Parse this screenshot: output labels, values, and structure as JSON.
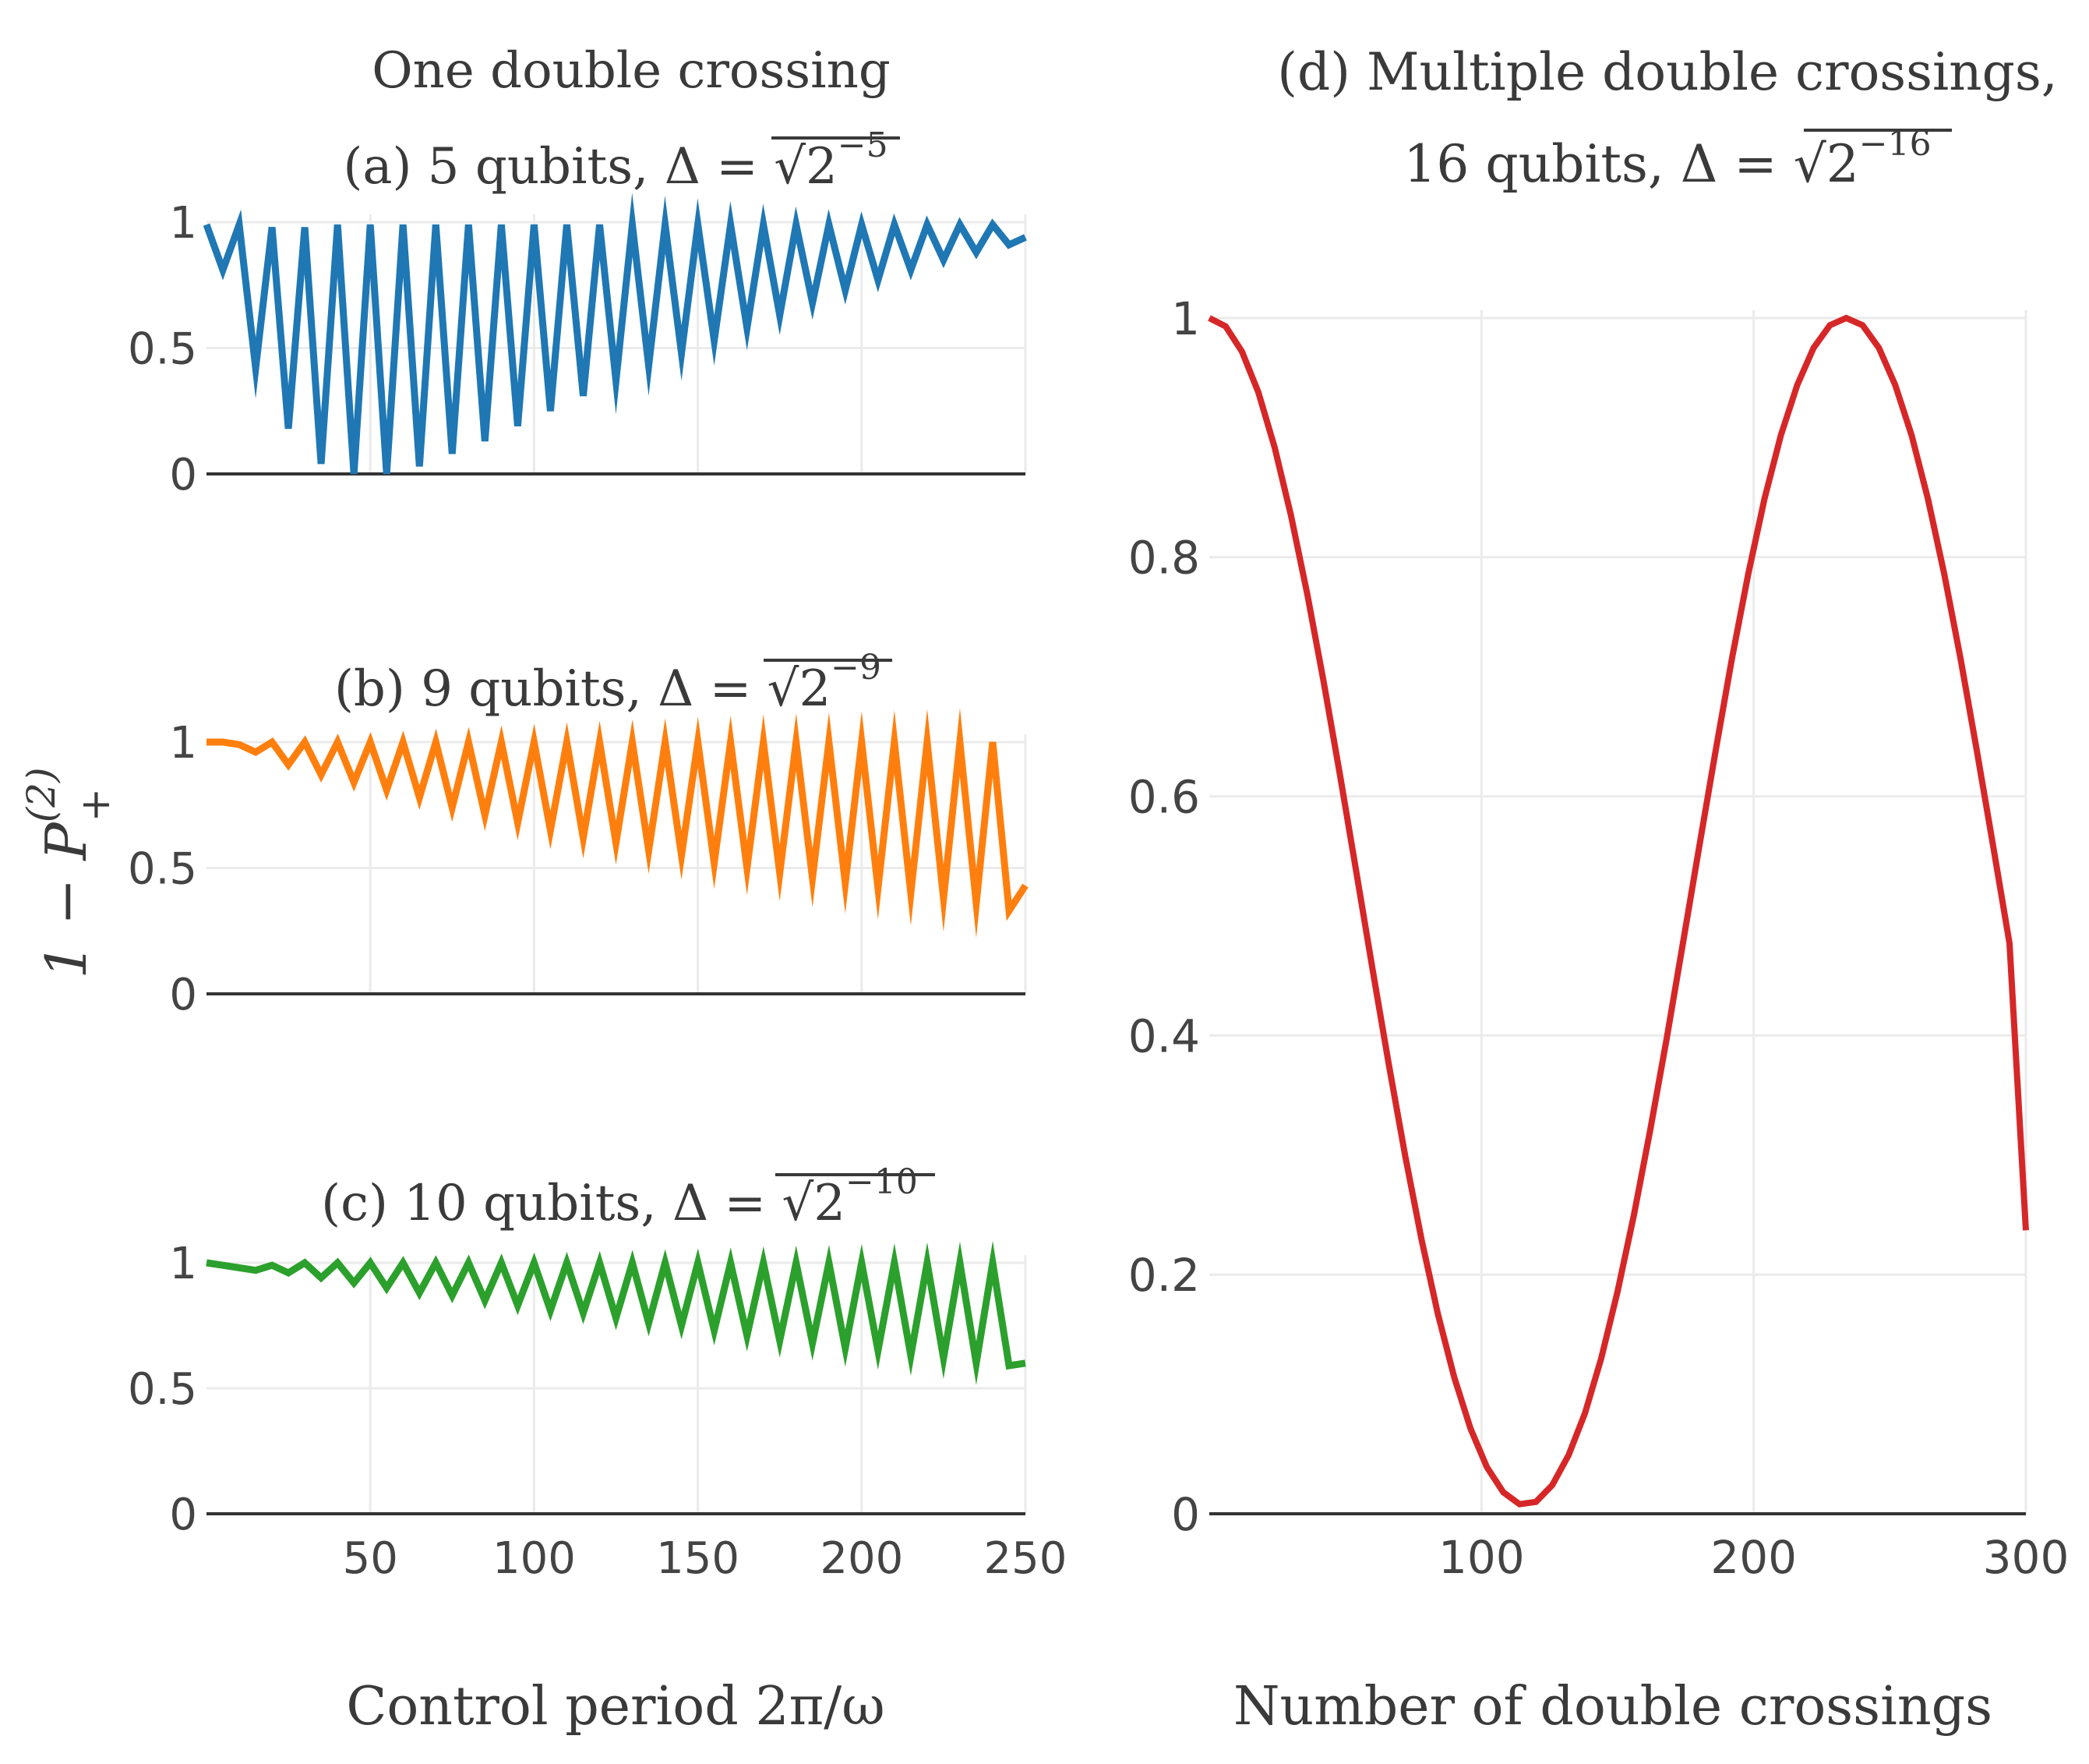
{
  "figure": {
    "group_title": "One double crossing",
    "ylabel_left": "1 − P",
    "ylabel_left_sup": "(2)",
    "ylabel_left_sub": "+"
  },
  "chart_data": [
    {
      "id": "a",
      "type": "line",
      "title": "(a) 5 qubits, Δ = √2",
      "title_exp": "−5",
      "xlabel": "",
      "ylabel": "",
      "xlim": [
        0,
        250
      ],
      "ylim": [
        0,
        1
      ],
      "x_ticks": [
        50,
        100,
        150,
        200,
        250
      ],
      "y_ticks": [
        0,
        0.5,
        1
      ],
      "y_tick_labels": [
        "0",
        "0.5",
        "1"
      ],
      "x_tick_labels": [
        "",
        "",
        "",
        "",
        ""
      ],
      "color": "#1f77b4",
      "series": [
        {
          "name": "5 qubits",
          "x": [
            0,
            5,
            10,
            15,
            20,
            25,
            30,
            35,
            40,
            45,
            50,
            55,
            60,
            65,
            70,
            75,
            80,
            85,
            90,
            95,
            100,
            105,
            110,
            115,
            120,
            125,
            130,
            135,
            140,
            145,
            150,
            155,
            160,
            165,
            170,
            175,
            180,
            185,
            190,
            195,
            200,
            205,
            210,
            215,
            220,
            225,
            230,
            235,
            240,
            245,
            250
          ],
          "values": [
            0.99,
            0.81,
            0.99,
            0.42,
            0.98,
            0.18,
            0.98,
            0.04,
            0.99,
            0.0,
            0.99,
            0.0,
            0.99,
            0.03,
            0.99,
            0.08,
            0.99,
            0.13,
            0.99,
            0.19,
            0.99,
            0.25,
            0.99,
            0.31,
            0.99,
            0.37,
            0.99,
            0.43,
            0.99,
            0.48,
            0.99,
            0.53,
            0.99,
            0.58,
            0.99,
            0.63,
            0.99,
            0.68,
            0.99,
            0.73,
            0.99,
            0.77,
            0.99,
            0.81,
            0.99,
            0.85,
            0.99,
            0.88,
            0.99,
            0.91,
            0.94
          ]
        }
      ]
    },
    {
      "id": "b",
      "type": "line",
      "title": "(b) 9 qubits, Δ = √2",
      "title_exp": "−9",
      "xlabel": "",
      "ylabel": "",
      "xlim": [
        0,
        250
      ],
      "ylim": [
        0,
        1
      ],
      "x_ticks": [
        50,
        100,
        150,
        200,
        250
      ],
      "y_ticks": [
        0,
        0.5,
        1
      ],
      "y_tick_labels": [
        "0",
        "0.5",
        "1"
      ],
      "x_tick_labels": [
        "",
        "",
        "",
        "",
        ""
      ],
      "color": "#ff7f0e",
      "series": [
        {
          "name": "9 qubits",
          "x": [
            0,
            5,
            10,
            15,
            20,
            25,
            30,
            35,
            40,
            45,
            50,
            55,
            60,
            65,
            70,
            75,
            80,
            85,
            90,
            95,
            100,
            105,
            110,
            115,
            120,
            125,
            130,
            135,
            140,
            145,
            150,
            155,
            160,
            165,
            170,
            175,
            180,
            185,
            190,
            195,
            200,
            205,
            210,
            215,
            220,
            225,
            230,
            235,
            240,
            245,
            250
          ],
          "values": [
            1.0,
            1.0,
            0.99,
            0.96,
            1.0,
            0.91,
            1.0,
            0.87,
            1.0,
            0.84,
            1.0,
            0.81,
            1.0,
            0.78,
            1.0,
            0.74,
            1.0,
            0.71,
            1.0,
            0.68,
            1.0,
            0.65,
            1.0,
            0.62,
            1.0,
            0.6,
            1.0,
            0.57,
            1.0,
            0.55,
            1.0,
            0.52,
            1.0,
            0.5,
            1.0,
            0.48,
            1.0,
            0.46,
            1.0,
            0.44,
            1.0,
            0.42,
            1.0,
            0.4,
            1.0,
            0.38,
            1.0,
            0.36,
            1.0,
            0.33,
            0.43
          ]
        }
      ]
    },
    {
      "id": "c",
      "type": "line",
      "title": "(c) 10 qubits, Δ = √2",
      "title_exp": "−10",
      "xlabel": "Control period 2π/ω",
      "ylabel": "",
      "xlim": [
        0,
        250
      ],
      "ylim": [
        0,
        1
      ],
      "x_ticks": [
        50,
        100,
        150,
        200,
        250
      ],
      "y_ticks": [
        0,
        0.5,
        1
      ],
      "y_tick_labels": [
        "0",
        "0.5",
        "1"
      ],
      "x_tick_labels": [
        "50",
        "100",
        "150",
        "200",
        "250"
      ],
      "color": "#2ca02c",
      "series": [
        {
          "name": "10 qubits",
          "x": [
            0,
            5,
            10,
            15,
            20,
            25,
            30,
            35,
            40,
            45,
            50,
            55,
            60,
            65,
            70,
            75,
            80,
            85,
            90,
            95,
            100,
            105,
            110,
            115,
            120,
            125,
            130,
            135,
            140,
            145,
            150,
            155,
            160,
            165,
            170,
            175,
            180,
            185,
            190,
            195,
            200,
            205,
            210,
            215,
            220,
            225,
            230,
            235,
            240,
            245,
            250
          ],
          "values": [
            1.0,
            0.99,
            0.98,
            0.97,
            0.99,
            0.96,
            1.0,
            0.94,
            1.0,
            0.92,
            1.0,
            0.9,
            1.0,
            0.88,
            1.0,
            0.87,
            1.0,
            0.85,
            1.0,
            0.83,
            1.0,
            0.81,
            1.0,
            0.8,
            1.0,
            0.78,
            1.0,
            0.76,
            1.0,
            0.75,
            1.0,
            0.73,
            1.0,
            0.71,
            1.0,
            0.69,
            1.0,
            0.68,
            1.0,
            0.66,
            1.0,
            0.65,
            1.0,
            0.63,
            1.0,
            0.62,
            1.0,
            0.6,
            1.0,
            0.59,
            0.6
          ]
        }
      ]
    },
    {
      "id": "d",
      "type": "line",
      "title": "(d) Multiple double crossings,",
      "title_line2": "16 qubits, Δ = √2",
      "title_exp": "−16",
      "xlabel": "Number of double crossings",
      "ylabel": "",
      "xlim": [
        0,
        300
      ],
      "ylim": [
        0,
        1
      ],
      "x_ticks": [
        100,
        200,
        300
      ],
      "y_ticks": [
        0,
        0.2,
        0.4,
        0.6,
        0.8,
        1
      ],
      "y_tick_labels": [
        "0",
        "0.2",
        "0.4",
        "0.6",
        "0.8",
        "1"
      ],
      "x_tick_labels": [
        "100",
        "200",
        "300"
      ],
      "color": "#d62728",
      "series": [
        {
          "name": "16 qubits",
          "x": [
            0,
            6,
            12,
            18,
            24,
            30,
            36,
            42,
            48,
            54,
            60,
            66,
            72,
            78,
            84,
            90,
            96,
            102,
            108,
            114,
            120,
            126,
            132,
            138,
            144,
            150,
            156,
            162,
            168,
            174,
            180,
            186,
            192,
            198,
            204,
            210,
            216,
            222,
            228,
            234,
            240,
            246,
            252,
            258,
            264,
            270,
            276,
            282,
            288,
            294,
            300
          ],
          "values": [
            1.0,
            0.993,
            0.972,
            0.938,
            0.892,
            0.835,
            0.769,
            0.696,
            0.618,
            0.537,
            0.455,
            0.375,
            0.299,
            0.229,
            0.167,
            0.114,
            0.071,
            0.039,
            0.018,
            0.008,
            0.01,
            0.024,
            0.049,
            0.084,
            0.13,
            0.186,
            0.25,
            0.321,
            0.397,
            0.477,
            0.558,
            0.638,
            0.715,
            0.786,
            0.849,
            0.902,
            0.944,
            0.975,
            0.994,
            1.0,
            0.994,
            0.975,
            0.944,
            0.902,
            0.849,
            0.786,
            0.715,
            0.638,
            0.558,
            0.477,
            0.237
          ]
        }
      ]
    }
  ]
}
